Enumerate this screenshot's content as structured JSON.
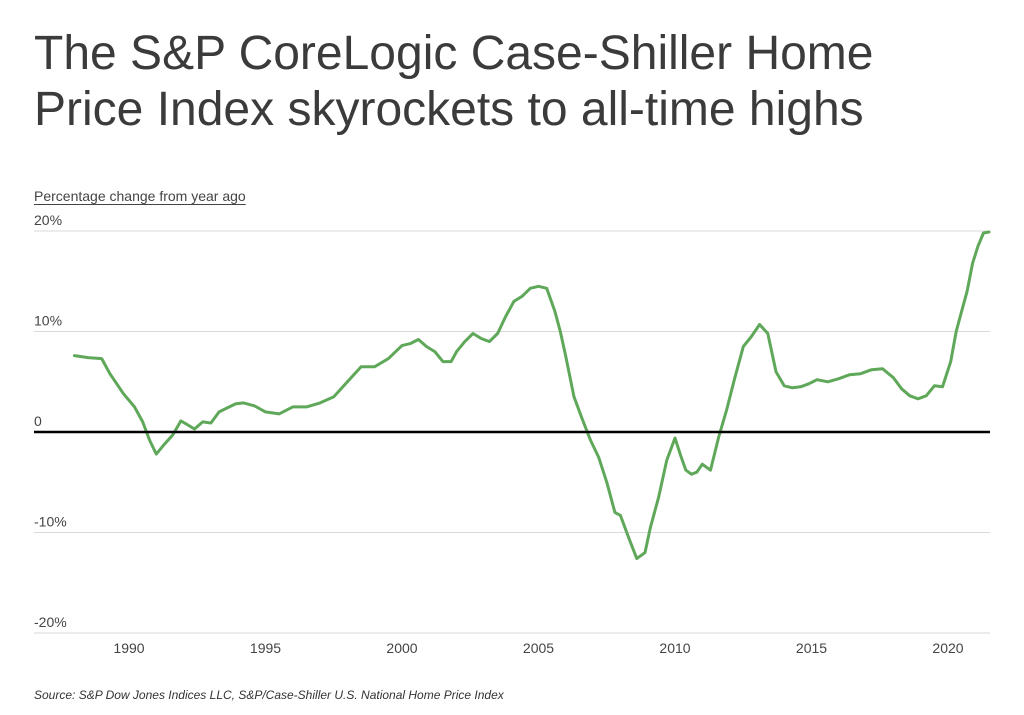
{
  "chart_data": {
    "type": "line",
    "title": "The S&P CoreLogic Case-Shiller Home Price Index skyrockets to all-time highs",
    "ylabel": "Percentage change from year ago",
    "xlabel": "",
    "ylim": [
      -20,
      20
    ],
    "xlim": [
      1987.0,
      2021.5
    ],
    "y_ticks": [
      "20%",
      "10%",
      "0",
      "-10%",
      "-20%"
    ],
    "x_ticks": [
      "1990",
      "1995",
      "2000",
      "2005",
      "2010",
      "2015",
      "2020"
    ],
    "grid": true,
    "line_color": "#5fa85a",
    "zero_line_color": "#000000",
    "series": [
      {
        "name": "",
        "x": [
          1988.0,
          1988.5,
          1989.0,
          1989.3,
          1989.8,
          1990.2,
          1990.5,
          1990.75,
          1991.0,
          1991.3,
          1991.6,
          1991.9,
          1992.1,
          1992.4,
          1992.7,
          1993.0,
          1993.3,
          1993.6,
          1993.9,
          1994.2,
          1994.6,
          1995.0,
          1995.5,
          1996.0,
          1996.5,
          1997.0,
          1997.5,
          1998.0,
          1998.5,
          1999.0,
          1999.5,
          2000.0,
          2000.3,
          2000.6,
          2000.9,
          2001.2,
          2001.5,
          2001.8,
          2002.0,
          2002.3,
          2002.6,
          2002.9,
          2003.2,
          2003.5,
          2003.8,
          2004.1,
          2004.4,
          2004.7,
          2005.0,
          2005.3,
          2005.6,
          2005.8,
          2006.0,
          2006.3,
          2006.6,
          2006.9,
          2007.2,
          2007.5,
          2007.8,
          2008.0,
          2008.3,
          2008.6,
          2008.9,
          2009.1,
          2009.4,
          2009.7,
          2010.0,
          2010.2,
          2010.4,
          2010.6,
          2010.8,
          2011.0,
          2011.3,
          2011.6,
          2011.9,
          2012.2,
          2012.5,
          2012.8,
          2013.1,
          2013.4,
          2013.7,
          2014.0,
          2014.3,
          2014.6,
          2014.9,
          2015.2,
          2015.6,
          2016.0,
          2016.4,
          2016.8,
          2017.2,
          2017.6,
          2018.0,
          2018.3,
          2018.6,
          2018.9,
          2019.2,
          2019.5,
          2019.8,
          2020.1,
          2020.3,
          2020.5,
          2020.7,
          2020.9,
          2021.1,
          2021.3,
          2021.5
        ],
        "values": [
          7.6,
          7.4,
          7.3,
          5.8,
          3.8,
          2.5,
          1.0,
          -0.8,
          -2.2,
          -1.2,
          -0.3,
          1.1,
          0.8,
          0.3,
          1.0,
          0.9,
          2.0,
          2.4,
          2.8,
          2.9,
          2.6,
          2.0,
          1.8,
          2.5,
          2.5,
          2.9,
          3.5,
          5.0,
          6.5,
          6.5,
          7.3,
          8.6,
          8.8,
          9.2,
          8.5,
          8.0,
          7.0,
          7.0,
          8.0,
          9.0,
          9.8,
          9.3,
          9.0,
          9.8,
          11.5,
          13.0,
          13.5,
          14.3,
          14.5,
          14.3,
          12.0,
          10.0,
          7.5,
          3.5,
          1.3,
          -0.8,
          -2.5,
          -5.0,
          -8.0,
          -8.3,
          -10.5,
          -12.6,
          -12.0,
          -9.5,
          -6.5,
          -2.8,
          -0.6,
          -2.3,
          -3.8,
          -4.2,
          -4.0,
          -3.2,
          -3.8,
          -0.5,
          2.3,
          5.5,
          8.5,
          9.5,
          10.7,
          9.8,
          6.0,
          4.6,
          4.4,
          4.5,
          4.8,
          5.2,
          5.0,
          5.3,
          5.7,
          5.8,
          6.2,
          6.3,
          5.4,
          4.3,
          3.6,
          3.3,
          3.6,
          4.6,
          4.5,
          7.0,
          10.0,
          12.0,
          14.0,
          16.8,
          18.5,
          19.8,
          19.9
        ]
      }
    ]
  },
  "source": "Source:  S&P Dow Jones Indices LLC, S&P/Case-Shiller U.S. National Home Price Index"
}
